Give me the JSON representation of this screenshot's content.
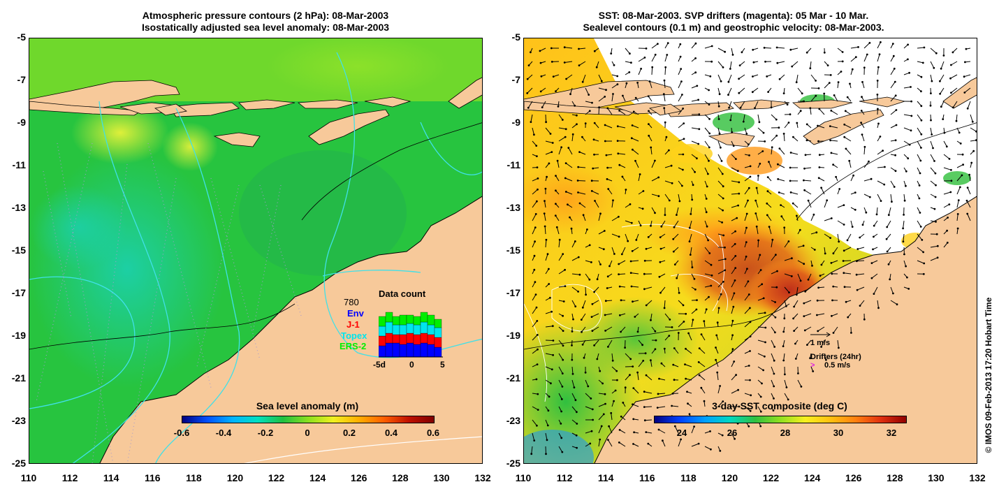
{
  "left_panel": {
    "title_line1": "Atmospheric pressure contours (2 hPa): 08-Mar-2003",
    "title_line2": "Isostatically adjusted sea level anomaly: 08-Mar-2003",
    "colorbar": {
      "title": "Sea level anomaly (m)",
      "ticks": [
        "-0.6",
        "-0.4",
        "-0.2",
        "0",
        "0.2",
        "0.4",
        "0.6"
      ]
    },
    "data_count": {
      "title": "Data count",
      "total": "780",
      "missions": [
        {
          "name": "Env",
          "color": "#0000ff"
        },
        {
          "name": "J-1",
          "color": "#ff0000"
        },
        {
          "name": "Topex",
          "color": "#00e5ee"
        },
        {
          "name": "ERS-2",
          "color": "#00ee00"
        }
      ],
      "x_ticks": [
        "-5d",
        "0",
        "5"
      ]
    }
  },
  "right_panel": {
    "title_line1": "SST: 08-Mar-2003. SVP drifters (magenta): 05 Mar - 10 Mar.",
    "title_line2": "Sealevel contours (0.1 m) and geostrophic velocity: 08-Mar-2003.",
    "colorbar": {
      "title": "3-day SST composite (deg C)",
      "ticks": [
        "24",
        "26",
        "28",
        "30",
        "32"
      ]
    },
    "velocity_key": "1 m/s",
    "drifter_key_title": "Drifters (24hr)",
    "drifter_key_value": "0.5 m/s"
  },
  "axes": {
    "y_ticks": [
      "-5",
      "-7",
      "-9",
      "-11",
      "-13",
      "-15",
      "-17",
      "-19",
      "-21",
      "-23",
      "-25"
    ],
    "x_ticks": [
      "110",
      "112",
      "114",
      "116",
      "118",
      "120",
      "122",
      "124",
      "126",
      "128",
      "130",
      "132"
    ]
  },
  "credit": "© IMOS 09-Feb-2013 17:20 Hobart Time",
  "colors": {
    "land": "#f7c99a",
    "ocean_green": "#22c33a",
    "ocean_warm": "#ff9a1a",
    "no_data": "#ffffff"
  }
}
